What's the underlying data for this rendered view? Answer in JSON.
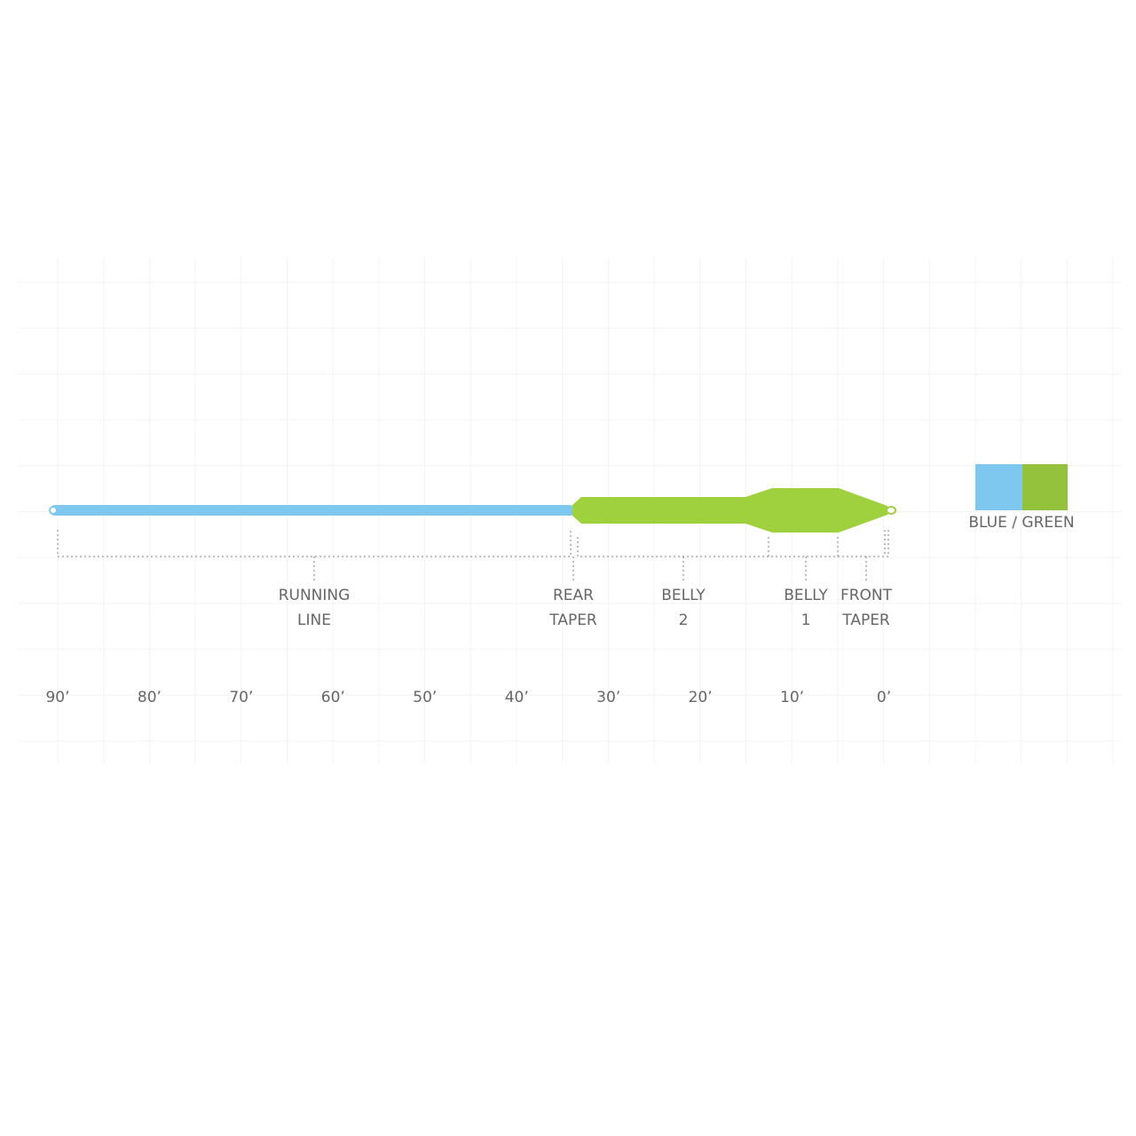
{
  "segments": [
    {
      "lines": [
        "RUNNING",
        "LINE"
      ]
    },
    {
      "lines": [
        "REAR",
        "TAPER"
      ]
    },
    {
      "lines": [
        "BELLY",
        "2"
      ]
    },
    {
      "lines": [
        "BELLY",
        "1"
      ]
    },
    {
      "lines": [
        "FRONT",
        "TAPER"
      ]
    }
  ],
  "scale": [
    "90’",
    "80’",
    "70’",
    "60’",
    "50’",
    "40’",
    "30’",
    "20’",
    "10’",
    "0’"
  ],
  "legend": {
    "label": "BLUE / GREEN"
  }
}
